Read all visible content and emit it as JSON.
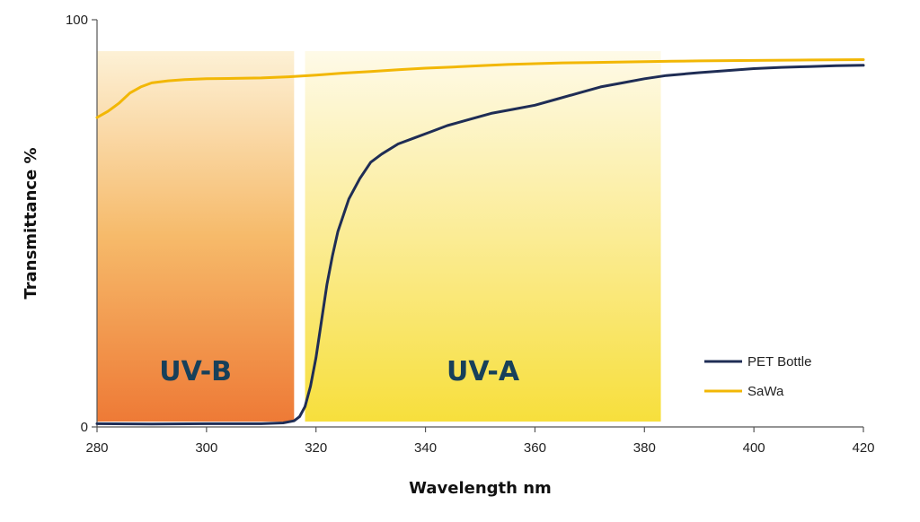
{
  "chart_data": {
    "type": "line",
    "xlabel": "Wavelength nm",
    "ylabel": "Transmittance %",
    "xlim": [
      280,
      420
    ],
    "ylim": [
      0,
      100
    ],
    "xticks": [
      280,
      300,
      320,
      340,
      360,
      380,
      400,
      420
    ],
    "yticks": [
      0,
      100
    ],
    "grid": false,
    "legend_position": "bottom-right",
    "bands": [
      {
        "label": "UV-B",
        "x": [
          280,
          316
        ],
        "gradient_colors": [
          "#ee7a36",
          "#f6ba6a",
          "#fdf1d6"
        ]
      },
      {
        "label": "UV-A",
        "x": [
          318,
          383
        ],
        "gradient_colors": [
          "#f7df3c",
          "#fbec95",
          "#fefae8"
        ]
      }
    ],
    "series": [
      {
        "name": "PET Bottle",
        "color": "#1f2d55",
        "x": [
          280,
          290,
          300,
          310,
          314,
          316,
          317,
          318,
          319,
          320,
          321,
          322,
          323,
          324,
          326,
          328,
          330,
          332,
          335,
          338,
          341,
          344,
          348,
          352,
          356,
          360,
          364,
          368,
          372,
          376,
          380,
          384,
          390,
          395,
          400,
          405,
          410,
          415,
          420
        ],
        "y": [
          0.8,
          0.7,
          0.8,
          0.8,
          1.0,
          1.5,
          2.5,
          5,
          10,
          17,
          26,
          35,
          42,
          48,
          56,
          61,
          65,
          67,
          69.5,
          71,
          72.5,
          74,
          75.5,
          77,
          78,
          79,
          80.5,
          82,
          83.5,
          84.5,
          85.5,
          86.3,
          87,
          87.5,
          88,
          88.3,
          88.5,
          88.7,
          88.8
        ]
      },
      {
        "name": "SaWa",
        "color": "#f2b705",
        "x": [
          280,
          282,
          284,
          286,
          288,
          290,
          293,
          296,
          300,
          305,
          310,
          315,
          320,
          325,
          330,
          335,
          340,
          345,
          350,
          355,
          360,
          365,
          370,
          375,
          380,
          385,
          390,
          400,
          410,
          420
        ],
        "y": [
          76,
          77.5,
          79.5,
          82,
          83.5,
          84.5,
          85,
          85.3,
          85.5,
          85.6,
          85.7,
          86,
          86.4,
          86.9,
          87.3,
          87.7,
          88.1,
          88.4,
          88.7,
          89,
          89.2,
          89.4,
          89.5,
          89.6,
          89.7,
          89.8,
          89.9,
          90,
          90.1,
          90.2
        ]
      }
    ]
  }
}
